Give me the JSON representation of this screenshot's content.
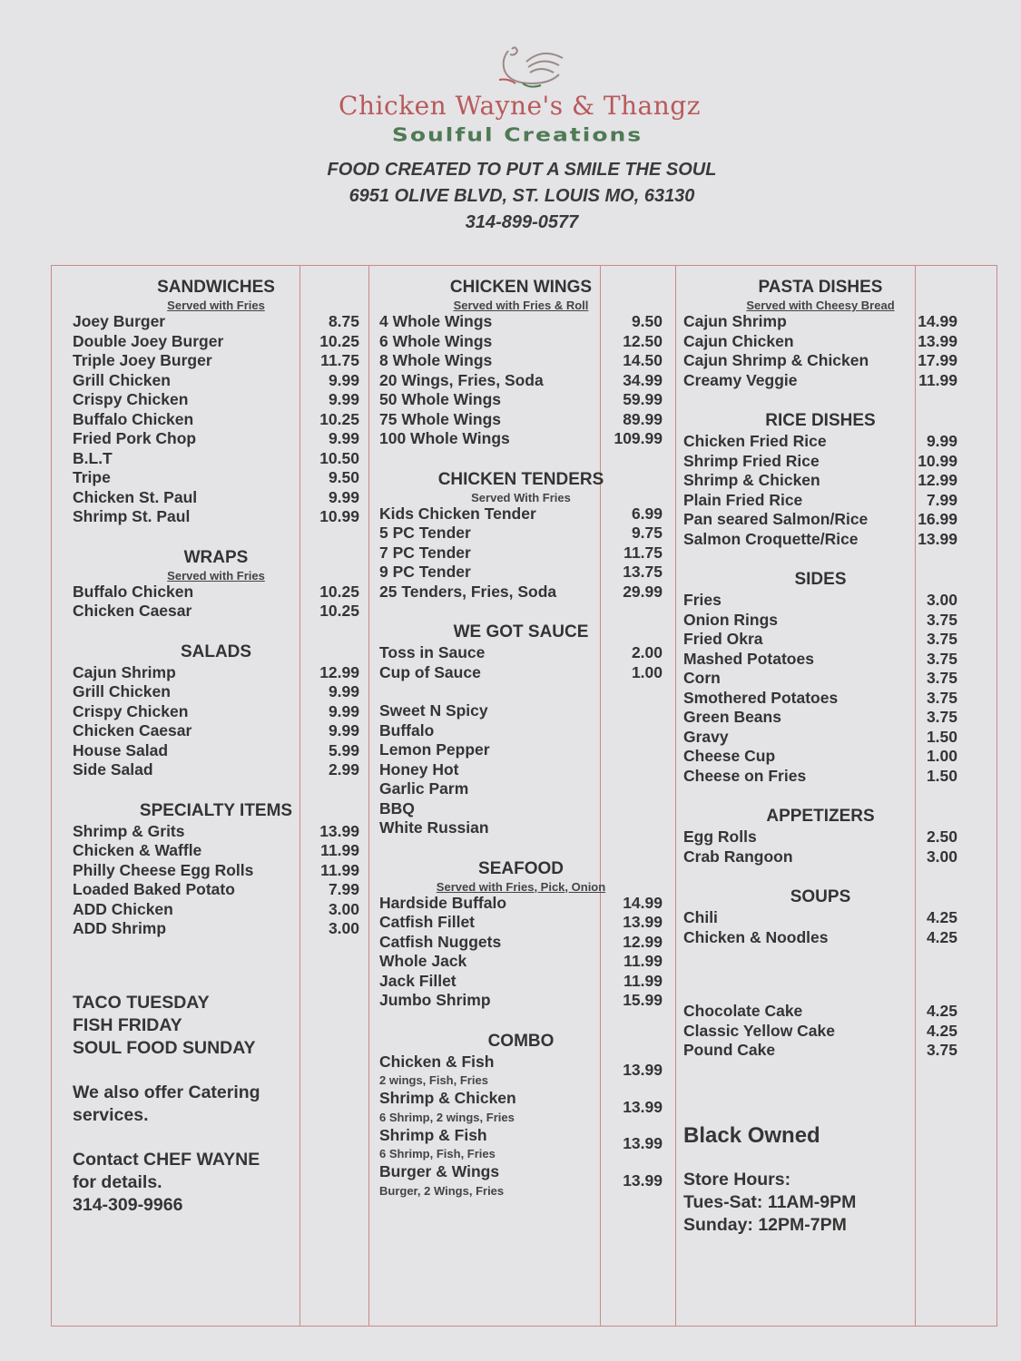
{
  "header": {
    "brand_name": "Chicken Wayne's & Thangz",
    "brand_tagline": "Soulful Creations",
    "logo_icon": "rooster-icon",
    "slogan": "FOOD CREATED TO PUT A SMILE THE SOUL",
    "address": "6951 OLIVE BLVD, ST. LOUIS MO, 63130",
    "phone": "314-899-0577"
  },
  "colors": {
    "brand_red": "#b85a5a",
    "brand_green": "#4e7a54",
    "border": "#c98a8a"
  },
  "columns": [
    {
      "sections": [
        {
          "title": "SANDWICHES",
          "subtitle": "Served with Fries",
          "items": [
            {
              "name": "Joey Burger",
              "price": "8.75"
            },
            {
              "name": "Double Joey Burger",
              "price": "10.25"
            },
            {
              "name": "Triple Joey Burger",
              "price": "11.75"
            },
            {
              "name": "Grill Chicken",
              "price": "9.99"
            },
            {
              "name": "Crispy Chicken",
              "price": "9.99"
            },
            {
              "name": "Buffalo Chicken",
              "price": "10.25"
            },
            {
              "name": "Fried Pork Chop",
              "price": "9.99"
            },
            {
              "name": "B.L.T",
              "price": "10.50"
            },
            {
              "name": "Tripe",
              "price": "9.50"
            },
            {
              "name": "Chicken St. Paul",
              "price": "9.99"
            },
            {
              "name": "Shrimp St. Paul",
              "price": "10.99"
            }
          ]
        },
        {
          "title": "WRAPS",
          "subtitle": "Served with Fries",
          "items": [
            {
              "name": "Buffalo Chicken",
              "price": "10.25"
            },
            {
              "name": "Chicken Caesar",
              "price": "10.25"
            }
          ]
        },
        {
          "title": "SALADS",
          "items": [
            {
              "name": "Cajun Shrimp",
              "price": "12.99"
            },
            {
              "name": "Grill Chicken",
              "price": "9.99"
            },
            {
              "name": "Crispy Chicken",
              "price": "9.99"
            },
            {
              "name": "Chicken Caesar",
              "price": "9.99"
            },
            {
              "name": "House Salad",
              "price": "5.99"
            },
            {
              "name": "Side Salad",
              "price": "2.99"
            }
          ]
        },
        {
          "title": "SPECIALTY ITEMS",
          "items": [
            {
              "name": "Shrimp & Grits",
              "price": "13.99"
            },
            {
              "name": "Chicken & Waffle",
              "price": "11.99"
            },
            {
              "name": "Philly Cheese Egg Rolls",
              "price": "11.99"
            },
            {
              "name": "Loaded Baked Potato",
              "price": "7.99"
            },
            {
              "name": "ADD Chicken",
              "price": "3.00"
            },
            {
              "name": "ADD Shrimp",
              "price": "3.00"
            }
          ]
        }
      ],
      "notes": [
        {
          "lines": [
            "TACO TUESDAY",
            "FISH FRIDAY",
            "SOUL FOOD SUNDAY"
          ]
        },
        {
          "lines": [
            "We also offer Catering",
            "services."
          ]
        },
        {
          "lines": [
            "Contact CHEF WAYNE",
            "for details.",
            "314-309-9966"
          ]
        }
      ]
    },
    {
      "sections": [
        {
          "title": "CHICKEN WINGS",
          "subtitle": "Served with Fries & Roll",
          "items": [
            {
              "name": "4 Whole Wings",
              "price": "9.50"
            },
            {
              "name": "6 Whole Wings",
              "price": "12.50"
            },
            {
              "name": "8 Whole Wings",
              "price": "14.50"
            },
            {
              "name": "20 Wings, Fries, Soda",
              "price": "34.99"
            },
            {
              "name": "50 Whole Wings",
              "price": "59.99"
            },
            {
              "name": "75 Whole Wings",
              "price": "89.99"
            },
            {
              "name": "100 Whole Wings",
              "price": "109.99"
            }
          ]
        },
        {
          "title": "CHICKEN TENDERS",
          "subtitle": "Served With Fries",
          "subtitle_plain": true,
          "items": [
            {
              "name": "Kids Chicken Tender",
              "price": "6.99"
            },
            {
              "name": "5 PC Tender",
              "price": "9.75"
            },
            {
              "name": "7 PC Tender",
              "price": "11.75"
            },
            {
              "name": "9 PC Tender",
              "price": "13.75"
            },
            {
              "name": "25 Tenders, Fries, Soda",
              "price": "29.99"
            }
          ]
        },
        {
          "title": "WE GOT SAUCE",
          "items": [
            {
              "name": "Toss in Sauce",
              "price": "2.00"
            },
            {
              "name": "Cup of Sauce",
              "price": "1.00"
            }
          ],
          "flavors": [
            "Sweet N Spicy",
            "Buffalo",
            "Lemon Pepper",
            "Honey Hot",
            "Garlic Parm",
            "BBQ",
            "White Russian"
          ]
        },
        {
          "title": "SEAFOOD",
          "subtitle": "Served with Fries, Pick, Onion",
          "items": [
            {
              "name": "Hardside Buffalo",
              "price": "14.99"
            },
            {
              "name": "Catfish Fillet",
              "price": "13.99"
            },
            {
              "name": "Catfish Nuggets",
              "price": "12.99"
            },
            {
              "name": "Whole Jack",
              "price": "11.99"
            },
            {
              "name": "Jack Fillet",
              "price": "11.99"
            },
            {
              "name": "Jumbo Shrimp",
              "price": "15.99"
            }
          ]
        },
        {
          "title": "COMBO",
          "items": [
            {
              "name": "Chicken & Fish",
              "desc": "2 wings, Fish, Fries",
              "price": "13.99"
            },
            {
              "name": "Shrimp & Chicken",
              "desc": "6 Shrimp, 2 wings, Fries",
              "price": "13.99"
            },
            {
              "name": "Shrimp & Fish",
              "desc": "6 Shrimp, Fish, Fries",
              "price": "13.99"
            },
            {
              "name": "Burger & Wings",
              "desc": "Burger, 2 Wings, Fries",
              "price": "13.99"
            }
          ]
        }
      ]
    },
    {
      "sections": [
        {
          "title": "PASTA DISHES",
          "subtitle": "Served with Cheesy Bread",
          "items": [
            {
              "name": "Cajun Shrimp",
              "price": "14.99"
            },
            {
              "name": "Cajun Chicken",
              "price": "13.99"
            },
            {
              "name": "Cajun Shrimp & Chicken",
              "price": "17.99"
            },
            {
              "name": "Creamy Veggie",
              "price": "11.99"
            }
          ]
        },
        {
          "title": "RICE DISHES",
          "items": [
            {
              "name": "Chicken Fried Rice",
              "price": "9.99"
            },
            {
              "name": "Shrimp Fried Rice",
              "price": "10.99"
            },
            {
              "name": "Shrimp & Chicken",
              "price": "12.99"
            },
            {
              "name": "Plain Fried Rice",
              "price": "7.99"
            },
            {
              "name": "Pan seared Salmon/Rice",
              "price": "16.99"
            },
            {
              "name": "Salmon Croquette/Rice",
              "price": "13.99"
            }
          ]
        },
        {
          "title": "SIDES",
          "items": [
            {
              "name": "Fries",
              "price": "3.00"
            },
            {
              "name": "Onion Rings",
              "price": "3.75"
            },
            {
              "name": "Fried Okra",
              "price": "3.75"
            },
            {
              "name": "Mashed Potatoes",
              "price": "3.75"
            },
            {
              "name": "Corn",
              "price": "3.75"
            },
            {
              "name": "Smothered Potatoes",
              "price": "3.75"
            },
            {
              "name": "Green Beans",
              "price": "3.75"
            },
            {
              "name": "Gravy",
              "price": "1.50"
            },
            {
              "name": "Cheese Cup",
              "price": "1.00"
            },
            {
              "name": "Cheese on Fries",
              "price": "1.50"
            }
          ]
        },
        {
          "title": "APPETIZERS",
          "items": [
            {
              "name": "Egg Rolls",
              "price": "2.50"
            },
            {
              "name": "Crab Rangoon",
              "price": "3.00"
            }
          ]
        },
        {
          "title": "SOUPS",
          "items": [
            {
              "name": "Chili",
              "price": "4.25"
            },
            {
              "name": "Chicken & Noodles",
              "price": "4.25"
            }
          ]
        },
        {
          "title": "",
          "items": [
            {
              "name": "Chocolate Cake",
              "price": "4.25"
            },
            {
              "name": "Classic Yellow Cake",
              "price": "4.25"
            },
            {
              "name": "Pound Cake",
              "price": "3.75"
            }
          ]
        }
      ],
      "notes": [
        {
          "lines": [
            "Black Owned"
          ],
          "big": true
        },
        {
          "lines": [
            "Store Hours:",
            "Tues-Sat: 11AM-9PM",
            "Sunday: 12PM-7PM"
          ]
        }
      ]
    }
  ]
}
